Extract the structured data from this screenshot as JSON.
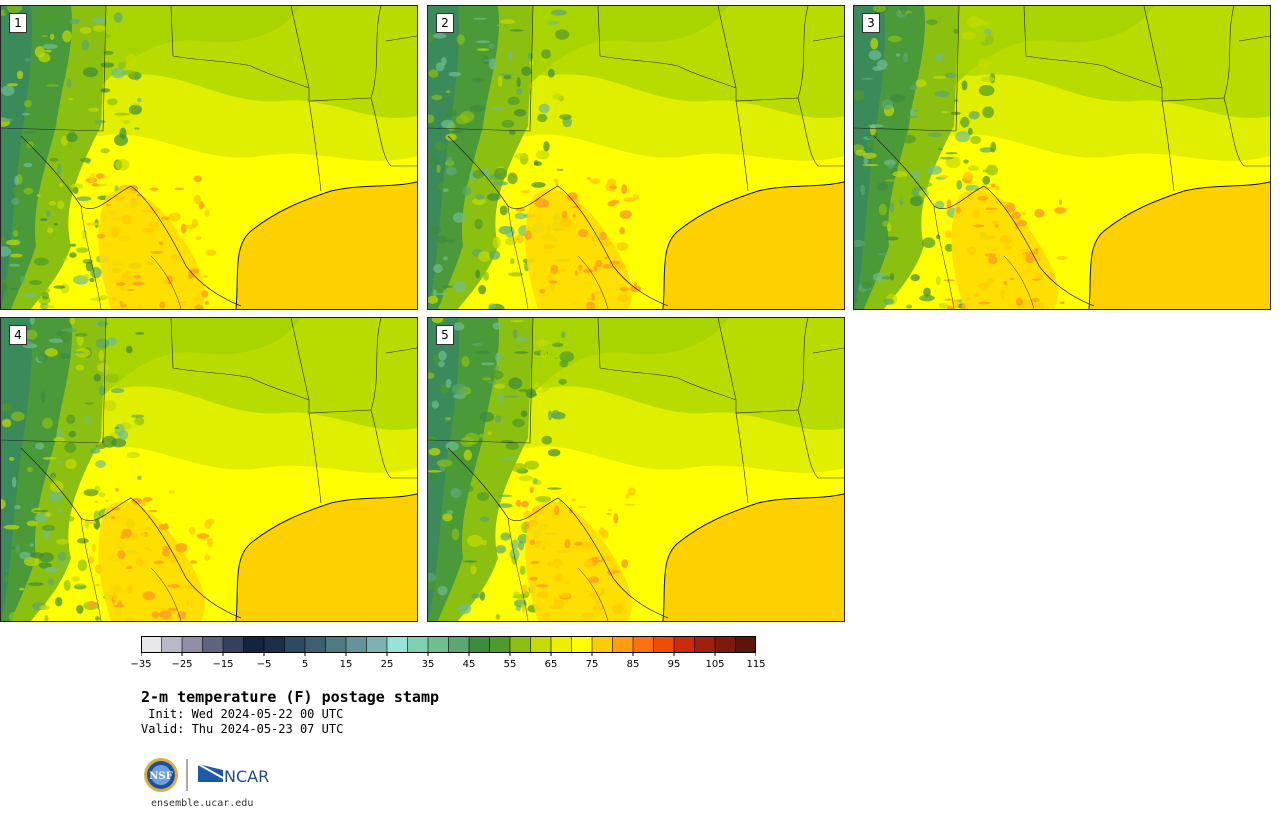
{
  "panels": [
    {
      "label": "1"
    },
    {
      "label": "2"
    },
    {
      "label": "3"
    },
    {
      "label": "4"
    },
    {
      "label": "5"
    }
  ],
  "colorbar": {
    "ticks": [
      "−35",
      "−25",
      "−15",
      "−5",
      "5",
      "15",
      "25",
      "35",
      "45",
      "55",
      "65",
      "75",
      "85",
      "95",
      "105",
      "115"
    ],
    "colors": [
      "#e8e8ec",
      "#b8b8c8",
      "#8e8ea6",
      "#5e6480",
      "#34405e",
      "#142440",
      "#1c2e4c",
      "#2c4a62",
      "#3c6072",
      "#4e7a86",
      "#64949a",
      "#7cb2b2",
      "#98e2d8",
      "#7fd0b0",
      "#6ebe92",
      "#58a870",
      "#3c8c3c",
      "#4e9a2a",
      "#8cc010",
      "#c4dc00",
      "#eeee00",
      "#ffff00",
      "#ffcc00",
      "#ff9c10",
      "#ff7010",
      "#f04c08",
      "#c82c08",
      "#a02010",
      "#7c1a0c",
      "#5a140a"
    ]
  },
  "title": "2-m temperature (F) postage stamp",
  "init": " Init: Wed 2024-05-22 00 UTC",
  "valid": "Valid: Thu 2024-05-23 07 UTC",
  "logos": {
    "nsf": "NSF",
    "ncar": "NCAR"
  },
  "website": "ensemble.ucar.edu",
  "map_colors": {
    "gulf": "#ffd000",
    "land_hot": "#ffff00",
    "land_mild": "#e0ee00",
    "land_cool": "#b8dc00",
    "mountains": "#4a9a3a",
    "warm_orange": "#ffa020",
    "borders": "#222222"
  }
}
